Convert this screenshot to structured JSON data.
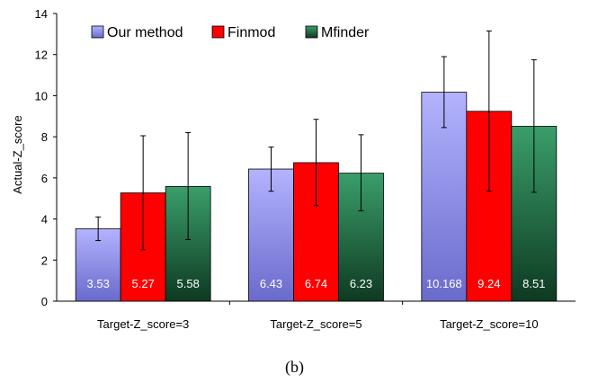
{
  "chart_data": {
    "type": "bar",
    "ylabel": "Actual-Z_score",
    "xlabel": "",
    "ylim": [
      0,
      14
    ],
    "yticks": [
      0,
      2,
      4,
      6,
      8,
      10,
      12,
      14
    ],
    "categories": [
      "Target-Z_score=3",
      "Target-Z_score=5",
      "Target-Z_score=10"
    ],
    "series": [
      {
        "name": "Our method",
        "values": [
          3.53,
          6.43,
          10.168
        ],
        "value_labels": [
          "3.53",
          "6.43",
          "10.168"
        ],
        "error_low": [
          2.95,
          5.35,
          8.45
        ],
        "error_high": [
          4.1,
          7.5,
          11.9
        ],
        "color_top": "#b3b3ff",
        "color_bottom": "#6a6acc"
      },
      {
        "name": "Finmod",
        "values": [
          5.27,
          6.74,
          9.24
        ],
        "value_labels": [
          "5.27",
          "6.74",
          "9.24"
        ],
        "error_low": [
          2.5,
          4.65,
          5.35
        ],
        "error_high": [
          8.05,
          8.85,
          13.15
        ],
        "color_top": "#ff0000",
        "color_bottom": "#ff0000"
      },
      {
        "name": "Mfinder",
        "values": [
          5.58,
          6.23,
          8.51
        ],
        "value_labels": [
          "5.58",
          "6.23",
          "8.51"
        ],
        "error_low": [
          3.0,
          4.4,
          5.3
        ],
        "error_high": [
          8.2,
          8.1,
          11.75
        ],
        "color_top": "#3a9e6a",
        "color_bottom": "#0e3a22"
      }
    ],
    "legend_position": "top-left",
    "grid": false
  },
  "caption": "(b)"
}
